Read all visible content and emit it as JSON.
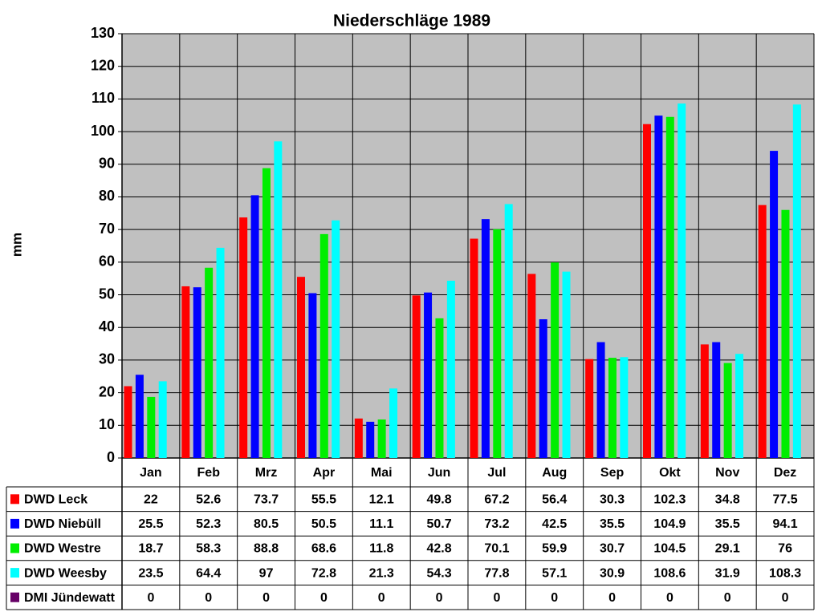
{
  "chart_data": {
    "type": "bar",
    "title": "Niederschläge 1989",
    "y_label": "mm",
    "categories": [
      "Jan",
      "Feb",
      "Mrz",
      "Apr",
      "Mai",
      "Jun",
      "Jul",
      "Aug",
      "Sep",
      "Okt",
      "Nov",
      "Dez"
    ],
    "series": [
      {
        "name": "DWD Leck",
        "color": "#ff0000",
        "values": [
          22,
          52.6,
          73.7,
          55.5,
          12.1,
          49.8,
          67.2,
          56.4,
          30.3,
          102.3,
          34.8,
          77.5
        ]
      },
      {
        "name": "DWD Niebüll",
        "color": "#0000ff",
        "values": [
          25.5,
          52.3,
          80.5,
          50.5,
          11.1,
          50.7,
          73.2,
          42.5,
          35.5,
          104.9,
          35.5,
          94.1
        ]
      },
      {
        "name": "DWD Westre",
        "color": "#00ee00",
        "values": [
          18.7,
          58.3,
          88.8,
          68.6,
          11.8,
          42.8,
          70.1,
          59.9,
          30.7,
          104.5,
          29.1,
          76
        ]
      },
      {
        "name": "DWD Weesby",
        "color": "#00ffff",
        "values": [
          23.5,
          64.4,
          97,
          72.8,
          21.3,
          54.3,
          77.8,
          57.1,
          30.9,
          108.6,
          31.9,
          108.3
        ]
      },
      {
        "name": "DMI Jündewatt",
        "color": "#660066",
        "values": [
          0,
          0,
          0,
          0,
          0,
          0,
          0,
          0,
          0,
          0,
          0,
          0
        ]
      }
    ],
    "ylim": [
      0,
      130
    ],
    "yticks": [
      0,
      10,
      20,
      30,
      40,
      50,
      60,
      70,
      80,
      90,
      100,
      110,
      120,
      130
    ],
    "grid": true,
    "background": "#c0c0c0"
  }
}
